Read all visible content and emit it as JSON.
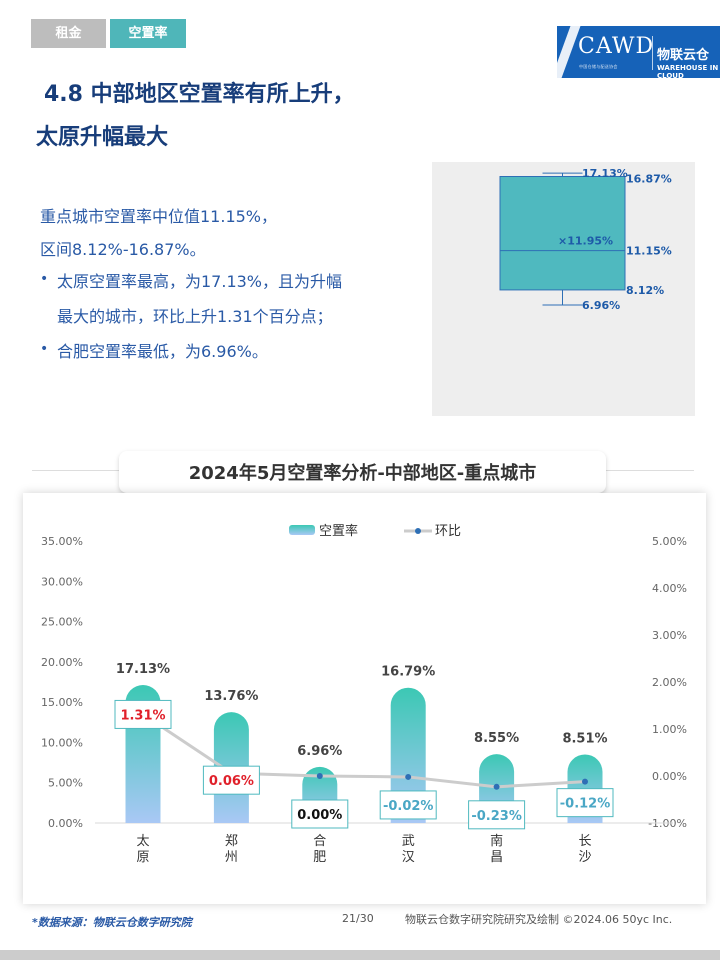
{
  "tabs": [
    {
      "label": "租金"
    },
    {
      "label": "空置率"
    }
  ],
  "logo": {
    "brand": "CAWD",
    "sub": "中国仓储与配送协会",
    "cn": "物联云仓",
    "en": "WAREHOUSE IN CLOUD"
  },
  "heading": {
    "line1": "4.8 中部地区空置率有所上升，",
    "line2": "太原升幅最大"
  },
  "summary": {
    "line1": "重点城市空置率中位值11.15%，",
    "line2": "区间8.12%-16.87%。",
    "bullet_marker": "•",
    "bullet1_line1": "太原空置率最高，为17.13%，且为升幅",
    "bullet1_line2": "最大的城市，环比上升1.31个百分点；",
    "bullet2": "合肥空置率最低，为6.96%。"
  },
  "boxplot": {
    "max_label": "17.13%",
    "q3_label": "16.87%",
    "mean_label": "×11.95%",
    "median_label": "11.15%",
    "q1_label": "8.12%",
    "min_label": "6.96%",
    "max": 17.13,
    "q3": 16.87,
    "mean": 11.95,
    "median": 11.15,
    "q1": 8.12,
    "min": 6.96,
    "color": "#4fb9bf"
  },
  "section_title": "2024年5月空置率分析-中部地区-重点城市",
  "chart_data": {
    "type": "bar",
    "categories": [
      "太原",
      "郑州",
      "合肥",
      "武汉",
      "南昌",
      "长沙"
    ],
    "series": [
      {
        "name": "空置率",
        "type": "bar",
        "axis": "left",
        "values": [
          17.13,
          13.76,
          6.96,
          16.79,
          8.55,
          8.51
        ],
        "labels": [
          "17.13%",
          "13.76%",
          "6.96%",
          "16.79%",
          "8.55%",
          "8.51%"
        ]
      },
      {
        "name": "环比",
        "type": "line",
        "axis": "right",
        "values": [
          1.31,
          0.06,
          0.0,
          -0.02,
          -0.23,
          -0.12
        ],
        "labels": [
          "1.31%",
          "0.06%",
          "0.00%",
          "-0.02%",
          "-0.23%",
          "-0.12%"
        ]
      }
    ],
    "left_axis": {
      "min": 0,
      "max": 35,
      "step": 5,
      "ticks": [
        "0.00%",
        "5.00%",
        "10.00%",
        "15.00%",
        "20.00%",
        "25.00%",
        "30.00%",
        "35.00%"
      ]
    },
    "right_axis": {
      "min": -1,
      "max": 5,
      "step": 1,
      "ticks": [
        "-1.00%",
        "0.00%",
        "1.00%",
        "2.00%",
        "3.00%",
        "4.00%",
        "5.00%"
      ]
    },
    "legend_position": "top-center",
    "colors": {
      "bar_top": "#3cc8b4",
      "bar_bottom": "#a9c8f5",
      "line": "#cccccc",
      "marker": "#2e6fb5",
      "label_red": "#e0202a",
      "label_black": "#111111",
      "label_teal": "#4aa7c5"
    }
  },
  "footer": {
    "source": "*数据来源：物联云仓数字研究院",
    "page": "21/30",
    "note": "物联云仓数字研究院研究及绘制  ©2024.06 50yc Inc."
  }
}
